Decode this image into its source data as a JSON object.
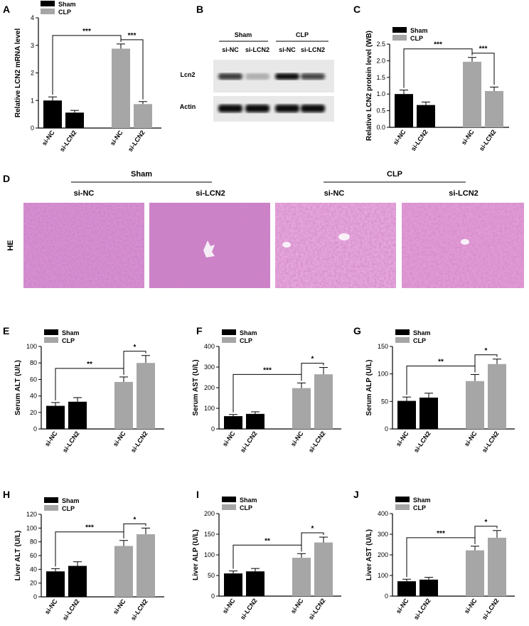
{
  "colors": {
    "sham": "#000000",
    "clp": "#a6a6a6"
  },
  "legend": {
    "sham": "Sham",
    "clp": "CLP"
  },
  "categories": [
    "si-NC",
    "si-LCN2",
    "si-NC",
    "si-LCN2"
  ],
  "chart_data": [
    {
      "panel": "A",
      "type": "bar",
      "ylabel": "Relative LCN2 mRNA level",
      "ylim": [
        0,
        4
      ],
      "yticks": [
        0,
        1,
        2,
        3,
        4
      ],
      "values": [
        1.0,
        0.56,
        2.88,
        0.87
      ],
      "errors": [
        0.13,
        0.08,
        0.17,
        0.09
      ],
      "sig": [
        {
          "from": 0,
          "to": 2,
          "label": "***"
        },
        {
          "from": 2,
          "to": 3,
          "label": "***"
        }
      ]
    },
    {
      "panel": "C",
      "type": "bar",
      "ylabel": "Relative LCN2 protein level (WB)",
      "ylim": [
        0,
        2.5
      ],
      "yticks": [
        0.0,
        0.5,
        1.0,
        1.5,
        2.0,
        2.5
      ],
      "values": [
        1.0,
        0.67,
        1.97,
        1.09
      ],
      "errors": [
        0.12,
        0.09,
        0.13,
        0.12
      ],
      "sig": [
        {
          "from": 0,
          "to": 2,
          "label": "***"
        },
        {
          "from": 2,
          "to": 3,
          "label": "***"
        }
      ]
    },
    {
      "panel": "E",
      "type": "bar",
      "ylabel": "Serum ALT (U/L)",
      "ylim": [
        0,
        100
      ],
      "yticks": [
        0,
        20,
        40,
        60,
        80,
        100
      ],
      "values": [
        28,
        33,
        57,
        80
      ],
      "errors": [
        4,
        5,
        6,
        9
      ],
      "sig": [
        {
          "from": 0,
          "to": 2,
          "label": "**"
        },
        {
          "from": 2,
          "to": 3,
          "label": "*"
        }
      ]
    },
    {
      "panel": "F",
      "type": "bar",
      "ylabel": "Serum AST (U/L)",
      "ylim": [
        0,
        400
      ],
      "yticks": [
        0,
        100,
        200,
        300,
        400
      ],
      "values": [
        62,
        73,
        198,
        265
      ],
      "errors": [
        8,
        10,
        25,
        33
      ],
      "sig": [
        {
          "from": 0,
          "to": 2,
          "label": "***"
        },
        {
          "from": 2,
          "to": 3,
          "label": "*"
        }
      ]
    },
    {
      "panel": "G",
      "type": "bar",
      "ylabel": "Serum ALP (U/L)",
      "ylim": [
        0,
        150
      ],
      "yticks": [
        0,
        50,
        100,
        150
      ],
      "values": [
        51,
        57,
        87,
        118
      ],
      "errors": [
        7,
        8,
        12,
        9
      ],
      "sig": [
        {
          "from": 0,
          "to": 2,
          "label": "**"
        },
        {
          "from": 2,
          "to": 3,
          "label": "*"
        }
      ]
    },
    {
      "panel": "H",
      "type": "bar",
      "ylabel": "Liver ALT (U/L)",
      "ylim": [
        0,
        120
      ],
      "yticks": [
        0,
        20,
        40,
        60,
        80,
        100,
        120
      ],
      "values": [
        37,
        45,
        74,
        91
      ],
      "errors": [
        4,
        6,
        8,
        9
      ],
      "sig": [
        {
          "from": 0,
          "to": 2,
          "label": "***"
        },
        {
          "from": 2,
          "to": 3,
          "label": "*"
        }
      ]
    },
    {
      "panel": "I",
      "type": "bar",
      "ylabel": "Liver ALP (U/L)",
      "ylim": [
        0,
        200
      ],
      "yticks": [
        0,
        50,
        100,
        150,
        200
      ],
      "values": [
        55,
        60,
        93,
        130
      ],
      "errors": [
        6,
        7,
        10,
        13
      ],
      "sig": [
        {
          "from": 0,
          "to": 2,
          "label": "**"
        },
        {
          "from": 2,
          "to": 3,
          "label": "*"
        }
      ]
    },
    {
      "panel": "J",
      "type": "bar",
      "ylabel": "Liver AST (U/L)",
      "ylim": [
        0,
        400
      ],
      "yticks": [
        0,
        100,
        200,
        300,
        400
      ],
      "values": [
        72,
        80,
        222,
        283
      ],
      "errors": [
        10,
        11,
        20,
        35
      ],
      "sig": [
        {
          "from": 0,
          "to": 2,
          "label": "***"
        },
        {
          "from": 2,
          "to": 3,
          "label": "*"
        }
      ]
    }
  ],
  "western_blot": {
    "panel": "B",
    "groups": [
      "Sham",
      "CLP"
    ],
    "lanes": [
      "si-NC",
      "si-LCN2",
      "si-NC",
      "si-LCN2"
    ],
    "rows": [
      {
        "label": "Lcn2",
        "intensity": [
          0.75,
          0.25,
          0.95,
          0.7
        ]
      },
      {
        "label": "Actin",
        "intensity": [
          0.95,
          0.95,
          0.95,
          0.95
        ]
      }
    ]
  },
  "histology": {
    "panel": "D",
    "groups": [
      "Sham",
      "CLP"
    ],
    "columns": [
      "si-NC",
      "si-LCN2",
      "si-NC",
      "si-LCN2"
    ],
    "row_label": "HE"
  }
}
